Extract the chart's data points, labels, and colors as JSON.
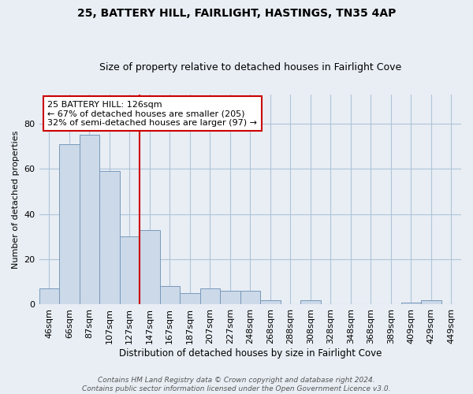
{
  "title": "25, BATTERY HILL, FAIRLIGHT, HASTINGS, TN35 4AP",
  "subtitle": "Size of property relative to detached houses in Fairlight Cove",
  "xlabel": "Distribution of detached houses by size in Fairlight Cove",
  "ylabel": "Number of detached properties",
  "categories": [
    "46sqm",
    "66sqm",
    "87sqm",
    "107sqm",
    "127sqm",
    "147sqm",
    "167sqm",
    "187sqm",
    "207sqm",
    "227sqm",
    "248sqm",
    "268sqm",
    "288sqm",
    "308sqm",
    "328sqm",
    "348sqm",
    "368sqm",
    "389sqm",
    "409sqm",
    "429sqm",
    "449sqm"
  ],
  "values": [
    7,
    71,
    75,
    59,
    30,
    33,
    8,
    5,
    7,
    6,
    6,
    2,
    0,
    2,
    0,
    0,
    0,
    0,
    1,
    2,
    0
  ],
  "bar_color": "#ccd9e8",
  "bar_edge_color": "#7799bb",
  "reference_line_x": 4.5,
  "reference_line_color": "#cc0000",
  "annotation_box_text": "25 BATTERY HILL: 126sqm\n← 67% of detached houses are smaller (205)\n32% of semi-detached houses are larger (97) →",
  "annotation_box_color": "#cc0000",
  "annotation_box_bg": "#ffffff",
  "footer_line1": "Contains HM Land Registry data © Crown copyright and database right 2024.",
  "footer_line2": "Contains public sector information licensed under the Open Government Licence v3.0.",
  "ylim": [
    0,
    93
  ],
  "background_color": "#e8eef4",
  "plot_bg_color": "#e8eef4",
  "grid_color": "#b0c4d8"
}
